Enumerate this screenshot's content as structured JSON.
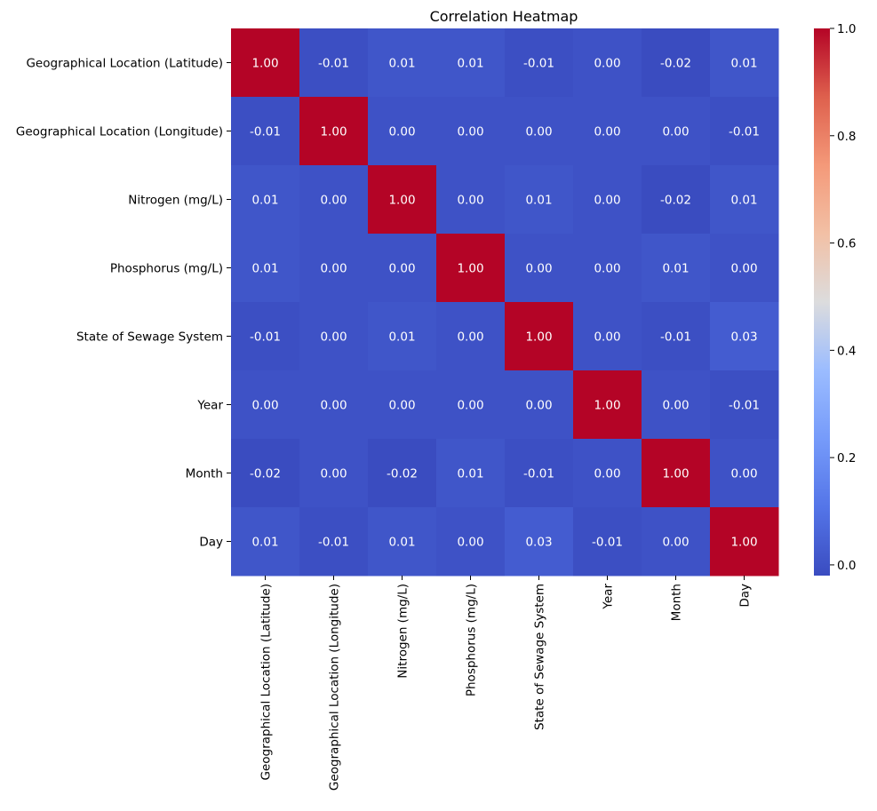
{
  "chart_data": {
    "type": "heatmap",
    "title": "Correlation Heatmap",
    "xlabel": "",
    "ylabel": "",
    "rows": [
      "Geographical Location (Latitude)",
      "Geographical Location (Longitude)",
      "Nitrogen (mg/L)",
      "Phosphorus (mg/L)",
      "State of Sewage System",
      "Year",
      "Month",
      "Day"
    ],
    "columns": [
      "Geographical Location (Latitude)",
      "Geographical Location (Longitude)",
      "Nitrogen (mg/L)",
      "Phosphorus (mg/L)",
      "State of Sewage System",
      "Year",
      "Month",
      "Day"
    ],
    "values": [
      [
        1.0,
        -0.01,
        0.01,
        0.01,
        -0.01,
        0.0,
        -0.02,
        0.01
      ],
      [
        -0.01,
        1.0,
        -0.0,
        0.0,
        0.0,
        -0.0,
        -0.0,
        -0.01
      ],
      [
        0.01,
        -0.0,
        1.0,
        -0.0,
        0.01,
        -0.0,
        -0.02,
        0.01
      ],
      [
        0.01,
        0.0,
        -0.0,
        1.0,
        -0.0,
        0.0,
        0.01,
        0.0
      ],
      [
        -0.01,
        0.0,
        0.01,
        -0.0,
        1.0,
        -0.0,
        -0.01,
        0.03
      ],
      [
        0.0,
        -0.0,
        -0.0,
        0.0,
        -0.0,
        1.0,
        -0.0,
        -0.01
      ],
      [
        -0.02,
        -0.0,
        -0.02,
        0.01,
        -0.01,
        -0.0,
        1.0,
        0.0
      ],
      [
        0.01,
        -0.01,
        0.01,
        0.0,
        0.03,
        -0.01,
        0.0,
        1.0
      ]
    ],
    "value_format": "0.00",
    "colormap": "coolwarm",
    "colorbar": {
      "min": -0.02,
      "max": 1.0,
      "ticks": [
        0.0,
        0.2,
        0.4,
        0.6,
        0.8,
        1.0
      ],
      "tick_labels": [
        "0.0",
        "0.2",
        "0.4",
        "0.6",
        "0.8",
        "1.0"
      ]
    },
    "annotation_color": "#ffffff",
    "grid": false
  }
}
